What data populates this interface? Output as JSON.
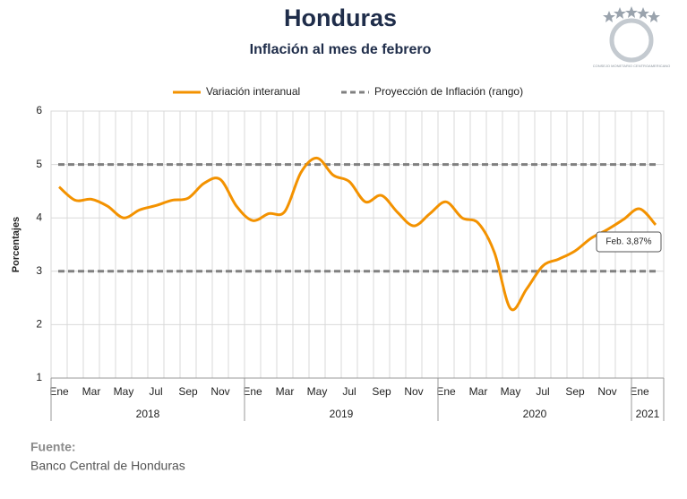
{
  "chart_data": {
    "type": "line",
    "title": "Honduras",
    "subtitle": "Inflación al mes de febrero",
    "logo_text": "CONSEJO MONETARIO CENTROAMERICANO",
    "y_label": "Porcentajes",
    "categories": [
      "Ene",
      null,
      "Mar",
      null,
      "May",
      null,
      "Jul",
      null,
      "Sep",
      null,
      "Nov",
      null,
      "Ene",
      null,
      "Mar",
      null,
      "May",
      null,
      "Jul",
      null,
      "Sep",
      null,
      "Nov",
      null,
      "Ene",
      null,
      "Mar",
      null,
      "May",
      null,
      "Jul",
      null,
      "Sep",
      null,
      "Nov",
      null,
      "Ene",
      null
    ],
    "years": [
      "2018",
      "2019",
      "2020",
      "2021"
    ],
    "series": [
      {
        "name": "Variación interanual",
        "color": "#f39200",
        "values": [
          4.58,
          4.33,
          4.35,
          4.22,
          4.0,
          4.15,
          4.23,
          4.33,
          4.37,
          4.65,
          4.72,
          4.22,
          3.95,
          4.08,
          4.12,
          4.85,
          5.12,
          4.8,
          4.68,
          4.3,
          4.42,
          4.1,
          3.85,
          4.08,
          4.3,
          4.0,
          3.9,
          3.35,
          2.3,
          2.67,
          3.1,
          3.23,
          3.38,
          3.62,
          3.78,
          3.97,
          4.17,
          3.87
        ]
      }
    ],
    "projection": {
      "name": "Proyección de Inflación (rango)",
      "color": "#808080",
      "values": [
        3,
        5
      ]
    },
    "annotation": {
      "text": "Feb. 3,87%",
      "value": 3.87
    },
    "ylim": [
      1,
      6
    ],
    "yticks": [
      1,
      2,
      3,
      4,
      5,
      6
    ],
    "grid": true,
    "source_label": "Fuente:",
    "source": "Banco Central de Honduras"
  }
}
